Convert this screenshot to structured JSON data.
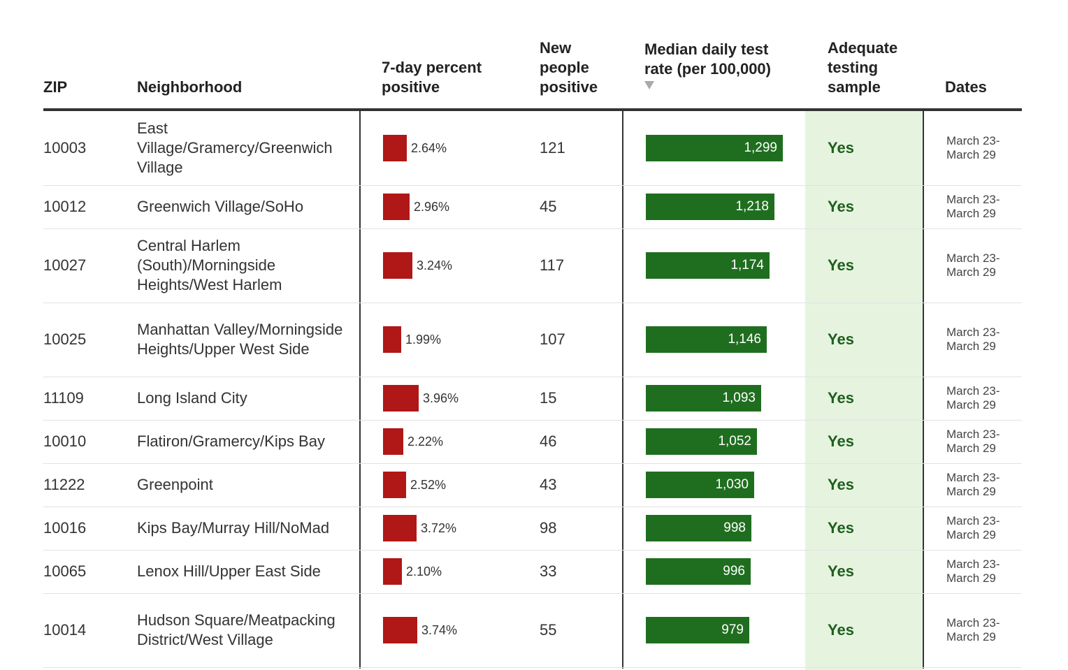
{
  "headers": {
    "zip": "ZIP",
    "neighborhood": "Neighborhood",
    "pct_positive": "7-day percent positive",
    "new_positive": "New people positive",
    "test_rate": "Median daily test rate (per 100,000)",
    "adequate": "Adequate testing sample",
    "dates": "Dates"
  },
  "sort_indicator": "sort-descending-icon",
  "colors": {
    "percent_bar": "#b01717",
    "rate_bar": "#1f6e1f",
    "adequate_bg": "#e6f4df",
    "adequate_text": "#1e5f1e"
  },
  "rows": [
    {
      "zip": "10003",
      "neighborhood": "East Village/Gramercy/Greenwich Village",
      "pct": "2.64%",
      "pct_value": 2.64,
      "new": "121",
      "rate": "1,299",
      "rate_value": 1299,
      "adequate": "Yes",
      "date_start": "March 23-",
      "date_end": "March 29"
    },
    {
      "zip": "10012",
      "neighborhood": "Greenwich Village/SoHo",
      "pct": "2.96%",
      "pct_value": 2.96,
      "new": "45",
      "rate": "1,218",
      "rate_value": 1218,
      "adequate": "Yes",
      "date_start": "March 23-",
      "date_end": "March 29"
    },
    {
      "zip": "10027",
      "neighborhood": "Central Harlem (South)/Morningside Heights/West Harlem",
      "pct": "3.24%",
      "pct_value": 3.24,
      "new": "117",
      "rate": "1,174",
      "rate_value": 1174,
      "adequate": "Yes",
      "date_start": "March 23-",
      "date_end": "March 29"
    },
    {
      "zip": "10025",
      "neighborhood": "Manhattan Valley/Morningside Heights/Upper West Side",
      "pct": "1.99%",
      "pct_value": 1.99,
      "new": "107",
      "rate": "1,146",
      "rate_value": 1146,
      "adequate": "Yes",
      "date_start": "March 23-",
      "date_end": "March 29"
    },
    {
      "zip": "11109",
      "neighborhood": "Long Island City",
      "pct": "3.96%",
      "pct_value": 3.96,
      "new": "15",
      "rate": "1,093",
      "rate_value": 1093,
      "adequate": "Yes",
      "date_start": "March 23-",
      "date_end": "March 29"
    },
    {
      "zip": "10010",
      "neighborhood": "Flatiron/Gramercy/Kips Bay",
      "pct": "2.22%",
      "pct_value": 2.22,
      "new": "46",
      "rate": "1,052",
      "rate_value": 1052,
      "adequate": "Yes",
      "date_start": "March 23-",
      "date_end": "March 29"
    },
    {
      "zip": "11222",
      "neighborhood": "Greenpoint",
      "pct": "2.52%",
      "pct_value": 2.52,
      "new": "43",
      "rate": "1,030",
      "rate_value": 1030,
      "adequate": "Yes",
      "date_start": "March 23-",
      "date_end": "March 29"
    },
    {
      "zip": "10016",
      "neighborhood": "Kips Bay/Murray Hill/NoMad",
      "pct": "3.72%",
      "pct_value": 3.72,
      "new": "98",
      "rate": "998",
      "rate_value": 998,
      "adequate": "Yes",
      "date_start": "March 23-",
      "date_end": "March 29"
    },
    {
      "zip": "10065",
      "neighborhood": "Lenox Hill/Upper East Side",
      "pct": "2.10%",
      "pct_value": 2.1,
      "new": "33",
      "rate": "996",
      "rate_value": 996,
      "adequate": "Yes",
      "date_start": "March 23-",
      "date_end": "March 29"
    },
    {
      "zip": "10014",
      "neighborhood": "Hudson Square/Meatpacking District/West Village",
      "pct": "3.74%",
      "pct_value": 3.74,
      "new": "55",
      "rate": "979",
      "rate_value": 979,
      "adequate": "Yes",
      "date_start": "March 23-",
      "date_end": "March 29"
    }
  ]
}
